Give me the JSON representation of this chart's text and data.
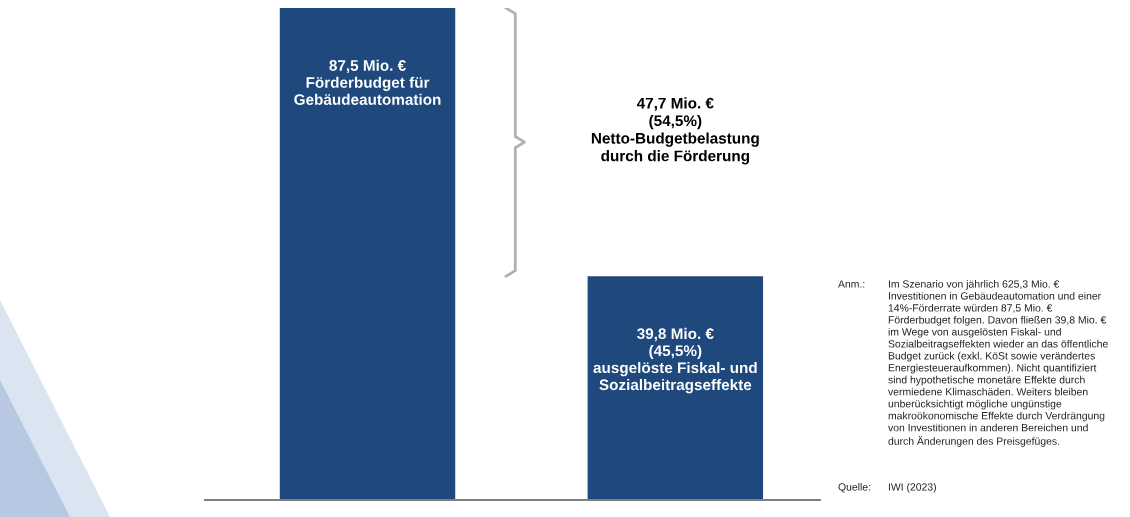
{
  "chart_data": {
    "type": "bar",
    "categories": [
      null,
      null
    ],
    "values": [
      87.5,
      39.8
    ],
    "color": "#1f497d",
    "value_labels": [
      "87,5 Mio. €\nFörderbudget für\nGebäudeautomation",
      "39,8 Mio. €\n(45,5%)\nausgelöste Fiskal- und\nSozialbeitragseffekte"
    ],
    "annotations": [
      "47,7 Mio. €\n(54,5%)\nNetto-Budgetbelastung\ndurch die Förderung",
      "Anm.:",
      "Im Szenario von jährlich 625,3 Mio. €\nInvestitionen in Gebäudeautomation und einer\n14%-Förderrate würden 87,5 Mio. €\nFörderbudget folgen. Davon fließen 39,8 Mio. €\nim Wege von ausgelösten Fiskal- und\nSozialbeitragseffekten wieder an das öffentliche\nBudget zurück (exkl. KöSt sowie verändertes\nEnergiesteueraufkommen). Nicht quantifiziert\nsind hypothetische monetäre Effekte durch\nvermiedene Klimaschäden. Weiters bleiben\nunberücksichtigt mögliche ungünstige\nmakroökonomische Effekte durch Verdrängung\nvon Investitionen in anderen Bereichen und\ndurch Änderungen des Preisgefüges.",
      "Quelle:",
      "IWI (2023)"
    ],
    "grid": false,
    "legend": false
  }
}
